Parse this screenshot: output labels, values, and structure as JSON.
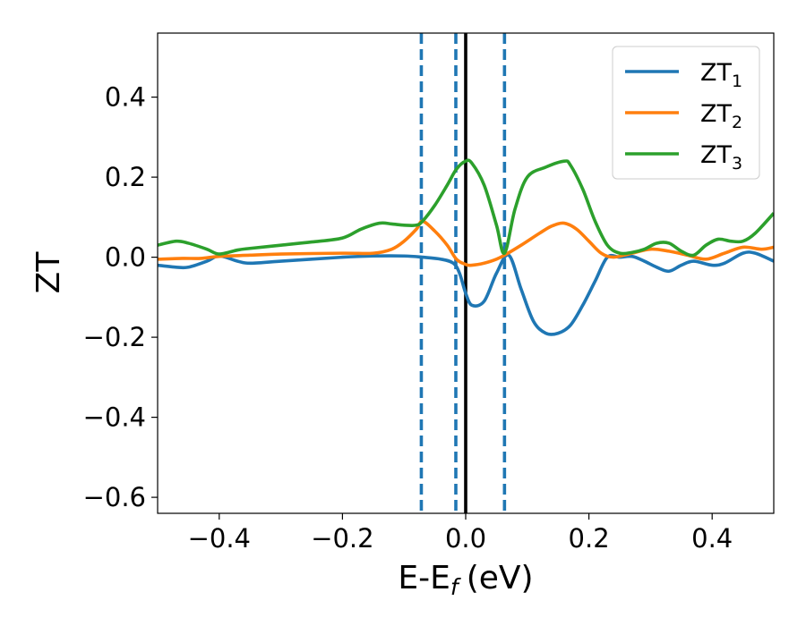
{
  "chart_data": {
    "type": "line",
    "xlabel": "E-E",
    "xlabel_sub": "f",
    "xlabel_unit": "(eV)",
    "ylabel": "ZT",
    "xlim": [
      -0.5,
      0.5
    ],
    "ylim": [
      -0.64,
      0.56
    ],
    "grid": false,
    "legend_position": "top-right",
    "x_ticks": [
      -0.4,
      -0.2,
      0.0,
      0.2,
      0.4
    ],
    "x_tick_labels": [
      "−0.4",
      "−0.2",
      "0.0",
      "0.2",
      "0.4"
    ],
    "y_ticks": [
      0.4,
      0.2,
      0.0,
      -0.2,
      -0.4,
      -0.6
    ],
    "y_tick_labels": [
      "0.4",
      "0.2",
      "0.0",
      "−0.2",
      "−0.4",
      "−0.6"
    ],
    "vlines": [
      {
        "x": -0.072,
        "style": "dashed",
        "color": "#1f77b4"
      },
      {
        "x": -0.016,
        "style": "dashed",
        "color": "#1f77b4"
      },
      {
        "x": 0.0,
        "style": "solid",
        "color": "#000000"
      },
      {
        "x": 0.063,
        "style": "dashed",
        "color": "#1f77b4"
      }
    ],
    "series": [
      {
        "name": "ZT",
        "subscript": "1",
        "color": "#1f77b4",
        "x": [
          -0.5,
          -0.47,
          -0.45,
          -0.42,
          -0.4,
          -0.37,
          -0.35,
          -0.3,
          -0.2,
          -0.15,
          -0.1,
          -0.07,
          -0.04,
          -0.02,
          -0.01,
          0.0,
          0.01,
          0.03,
          0.05,
          0.07,
          0.09,
          0.11,
          0.13,
          0.15,
          0.17,
          0.19,
          0.21,
          0.23,
          0.25,
          0.27,
          0.29,
          0.31,
          0.33,
          0.35,
          0.37,
          0.4,
          0.42,
          0.45,
          0.47,
          0.5
        ],
        "y": [
          -0.02,
          -0.025,
          -0.025,
          -0.01,
          0.003,
          -0.01,
          -0.015,
          -0.01,
          0.0,
          0.003,
          0.003,
          0.0,
          -0.005,
          -0.015,
          -0.04,
          -0.09,
          -0.12,
          -0.11,
          -0.04,
          0.005,
          -0.08,
          -0.16,
          -0.19,
          -0.19,
          -0.17,
          -0.12,
          -0.06,
          0.0,
          0.0,
          0.002,
          -0.01,
          -0.025,
          -0.035,
          -0.02,
          -0.01,
          -0.02,
          -0.015,
          0.01,
          0.01,
          -0.01
        ]
      },
      {
        "name": "ZT",
        "subscript": "2",
        "color": "#ff7f0e",
        "x": [
          -0.5,
          -0.46,
          -0.43,
          -0.4,
          -0.35,
          -0.3,
          -0.2,
          -0.15,
          -0.12,
          -0.1,
          -0.08,
          -0.07,
          -0.05,
          -0.03,
          -0.015,
          0.0,
          0.01,
          0.03,
          0.05,
          0.063,
          0.09,
          0.12,
          0.14,
          0.16,
          0.18,
          0.2,
          0.22,
          0.24,
          0.27,
          0.3,
          0.33,
          0.36,
          0.39,
          0.42,
          0.45,
          0.48,
          0.5
        ],
        "y": [
          -0.005,
          -0.003,
          -0.003,
          0.002,
          0.005,
          0.008,
          0.01,
          0.01,
          0.02,
          0.04,
          0.07,
          0.09,
          0.065,
          0.03,
          -0.005,
          -0.018,
          -0.02,
          -0.015,
          -0.005,
          0.005,
          0.03,
          0.06,
          0.078,
          0.085,
          0.07,
          0.04,
          0.01,
          0.0,
          0.01,
          0.02,
          0.015,
          0.005,
          -0.005,
          0.01,
          0.025,
          0.02,
          0.025
        ]
      },
      {
        "name": "ZT",
        "subscript": "3",
        "color": "#2ca02c",
        "x": [
          -0.5,
          -0.47,
          -0.45,
          -0.42,
          -0.4,
          -0.37,
          -0.35,
          -0.3,
          -0.25,
          -0.2,
          -0.17,
          -0.14,
          -0.12,
          -0.1,
          -0.08,
          -0.07,
          -0.05,
          -0.03,
          -0.015,
          0.0,
          0.01,
          0.03,
          0.05,
          0.063,
          0.08,
          0.1,
          0.13,
          0.16,
          0.17,
          0.19,
          0.21,
          0.23,
          0.25,
          0.27,
          0.29,
          0.31,
          0.33,
          0.35,
          0.37,
          0.39,
          0.41,
          0.43,
          0.45,
          0.47,
          0.5
        ],
        "y": [
          0.03,
          0.04,
          0.035,
          0.02,
          0.008,
          0.018,
          0.022,
          0.03,
          0.038,
          0.048,
          0.07,
          0.085,
          0.083,
          0.08,
          0.08,
          0.09,
          0.13,
          0.18,
          0.22,
          0.24,
          0.235,
          0.18,
          0.08,
          0.01,
          0.12,
          0.2,
          0.225,
          0.24,
          0.23,
          0.17,
          0.09,
          0.03,
          0.01,
          0.012,
          0.02,
          0.035,
          0.035,
          0.015,
          0.005,
          0.03,
          0.045,
          0.04,
          0.04,
          0.06,
          0.11
        ]
      }
    ]
  }
}
